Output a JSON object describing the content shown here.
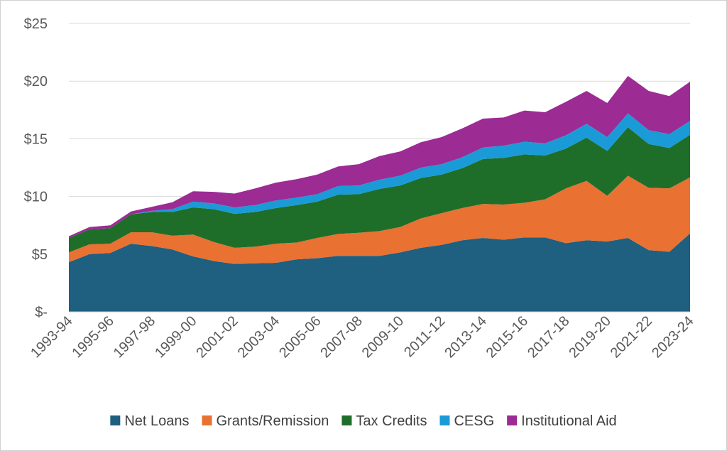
{
  "chart_data": {
    "type": "area",
    "stacked": true,
    "title": "",
    "xlabel": "",
    "ylabel": "",
    "ylim": [
      0,
      25
    ],
    "y_ticks": [
      0,
      5,
      10,
      15,
      20,
      25
    ],
    "y_tick_labels": [
      "$-",
      "$5",
      "$10",
      "$15",
      "$20",
      "$25"
    ],
    "grid": true,
    "legend_position": "bottom",
    "categories": [
      "1993-94",
      "1994-95",
      "1995-96",
      "1996-97",
      "1997-98",
      "1998-99",
      "1999-00",
      "2000-01",
      "2001-02",
      "2002-03",
      "2003-04",
      "2004-05",
      "2005-06",
      "2006-07",
      "2007-08",
      "2008-09",
      "2009-10",
      "2010-11",
      "2011-12",
      "2012-13",
      "2013-14",
      "2014-15",
      "2015-16",
      "2016-17",
      "2017-18",
      "2018-19",
      "2019-20",
      "2020-21",
      "2021-22",
      "2022-23",
      "2023-24"
    ],
    "x_tick_labels": [
      "1993-94",
      "1995-96",
      "1997-98",
      "1999-00",
      "2001-02",
      "2003-04",
      "2005-06",
      "2007-08",
      "2009-10",
      "2011-12",
      "2013-14",
      "2015-16",
      "2017-18",
      "2019-20",
      "2021-22",
      "2023-24"
    ],
    "series": [
      {
        "name": "Net Loans",
        "color": "#1f5f7f",
        "values": [
          4.3,
          5.0,
          5.1,
          5.9,
          5.7,
          5.4,
          4.8,
          4.4,
          4.15,
          4.2,
          4.25,
          4.55,
          4.65,
          4.85,
          4.85,
          4.85,
          5.15,
          5.55,
          5.8,
          6.2,
          6.4,
          6.25,
          6.45,
          6.45,
          5.95,
          6.2,
          6.1,
          6.4,
          5.35,
          5.2,
          6.8
        ]
      },
      {
        "name": "Grants/Remission",
        "color": "#e97132",
        "values": [
          0.85,
          0.85,
          0.8,
          1.0,
          1.2,
          1.2,
          1.9,
          1.65,
          1.4,
          1.45,
          1.65,
          1.45,
          1.75,
          1.9,
          2.0,
          2.15,
          2.2,
          2.55,
          2.75,
          2.8,
          2.95,
          3.05,
          3.0,
          3.3,
          4.75,
          5.15,
          3.95,
          5.4,
          5.4,
          5.5,
          4.85
        ]
      },
      {
        "name": "Tax Credits",
        "color": "#1e6e2a",
        "values": [
          1.25,
          1.3,
          1.35,
          1.55,
          1.75,
          2.05,
          2.35,
          2.85,
          2.95,
          3.0,
          3.1,
          3.25,
          3.15,
          3.4,
          3.35,
          3.65,
          3.6,
          3.5,
          3.35,
          3.45,
          3.9,
          4.05,
          4.2,
          3.8,
          3.45,
          3.75,
          3.9,
          4.2,
          3.8,
          3.5,
          3.7
        ]
      },
      {
        "name": "CESG",
        "color": "#1a9bd7",
        "values": [
          0.0,
          0.0,
          0.0,
          0.0,
          0.1,
          0.25,
          0.5,
          0.5,
          0.55,
          0.6,
          0.65,
          0.65,
          0.65,
          0.75,
          0.75,
          0.8,
          0.85,
          0.9,
          0.9,
          0.95,
          1.0,
          1.05,
          1.1,
          1.05,
          1.15,
          1.2,
          1.2,
          1.2,
          1.2,
          1.2,
          1.2
        ]
      },
      {
        "name": "Institutional Aid",
        "color": "#9c2b94",
        "values": [
          0.15,
          0.2,
          0.25,
          0.25,
          0.35,
          0.6,
          0.9,
          1.0,
          1.2,
          1.45,
          1.55,
          1.6,
          1.7,
          1.7,
          1.85,
          2.05,
          2.1,
          2.2,
          2.35,
          2.5,
          2.5,
          2.45,
          2.7,
          2.7,
          2.9,
          2.85,
          2.95,
          3.25,
          3.4,
          3.3,
          3.4
        ]
      }
    ]
  }
}
